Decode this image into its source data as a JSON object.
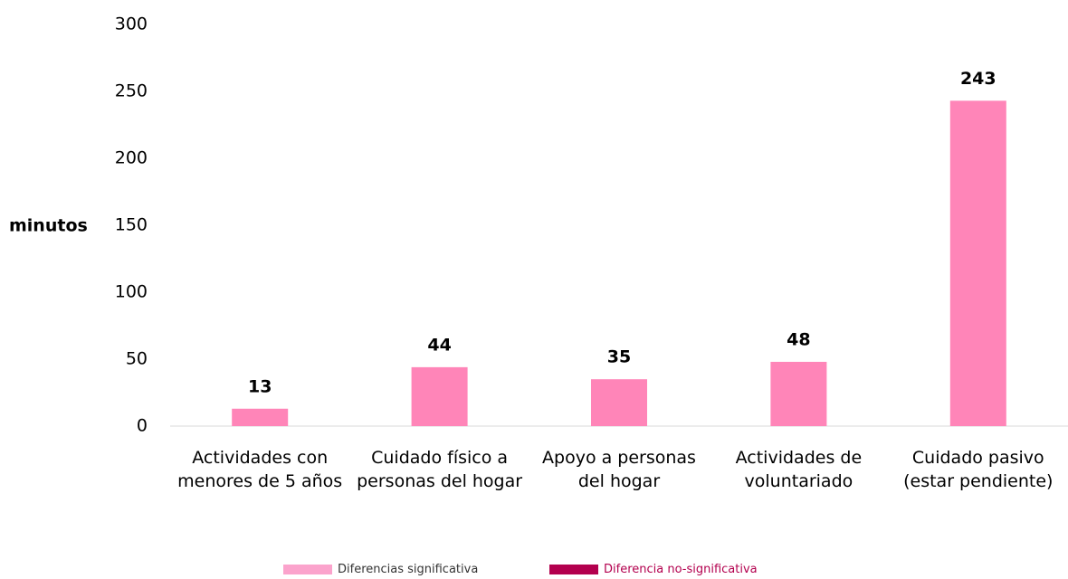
{
  "chart_data": {
    "type": "bar",
    "y_label": "minutos",
    "categories": [
      "Actividades con menores de 5 años",
      "Cuidado físico a personas del hogar",
      "Apoyo a personas del hogar",
      "Actividades de voluntariado",
      "Cuidado pasivo (estar pendiente)"
    ],
    "values": [
      13,
      44,
      35,
      48,
      243
    ],
    "color": "#ff85b8",
    "ylim": [
      0,
      300
    ],
    "yticks": [
      0,
      50,
      100,
      150,
      200,
      250,
      300
    ],
    "grid": false,
    "legend": [
      {
        "name": "Diferencias significativa",
        "color": "#fba3cc",
        "text_color": "#333333"
      },
      {
        "name": "Diferencia no-significativa",
        "color": "#b3004e",
        "text_color": "#b3004e"
      }
    ]
  }
}
